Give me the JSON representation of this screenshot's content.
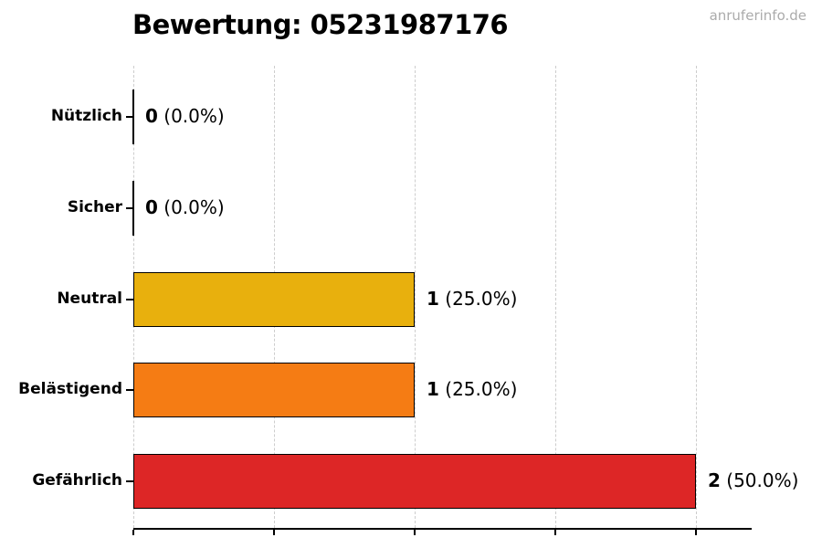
{
  "title": "Bewertung: 05231987176",
  "watermark": "anruferinfo.de",
  "colors": {
    "bar_edge": "#000000",
    "axis": "#000000",
    "gridline": "#cdcdcd",
    "watermark_text": "#ababab",
    "title_text": "#000000"
  },
  "chart_data": {
    "type": "bar",
    "orientation": "horizontal",
    "title": "Bewertung: 05231987176",
    "categories": [
      "Nützlich",
      "Sicher",
      "Neutral",
      "Belästigend",
      "Gefährlich"
    ],
    "values": [
      0,
      0,
      1,
      1,
      2
    ],
    "percentages": [
      0.0,
      0.0,
      25.0,
      25.0,
      50.0
    ],
    "value_labels": [
      {
        "count": "0",
        "percent": "(0.0%)"
      },
      {
        "count": "0",
        "percent": "(0.0%)"
      },
      {
        "count": "1",
        "percent": "(25.0%)"
      },
      {
        "count": "1",
        "percent": "(25.0%)"
      },
      {
        "count": "2",
        "percent": "(50.0%)"
      }
    ],
    "bar_colors": [
      null,
      null,
      "#e8b00d",
      "#f57c14",
      "#dd2626"
    ],
    "xlim": [
      0,
      2.2
    ],
    "xticks": [
      0,
      0.5,
      1.0,
      1.5,
      2.0
    ],
    "xtick_labels_visible": false,
    "grid": "vertical-dashed",
    "legend": "none"
  }
}
